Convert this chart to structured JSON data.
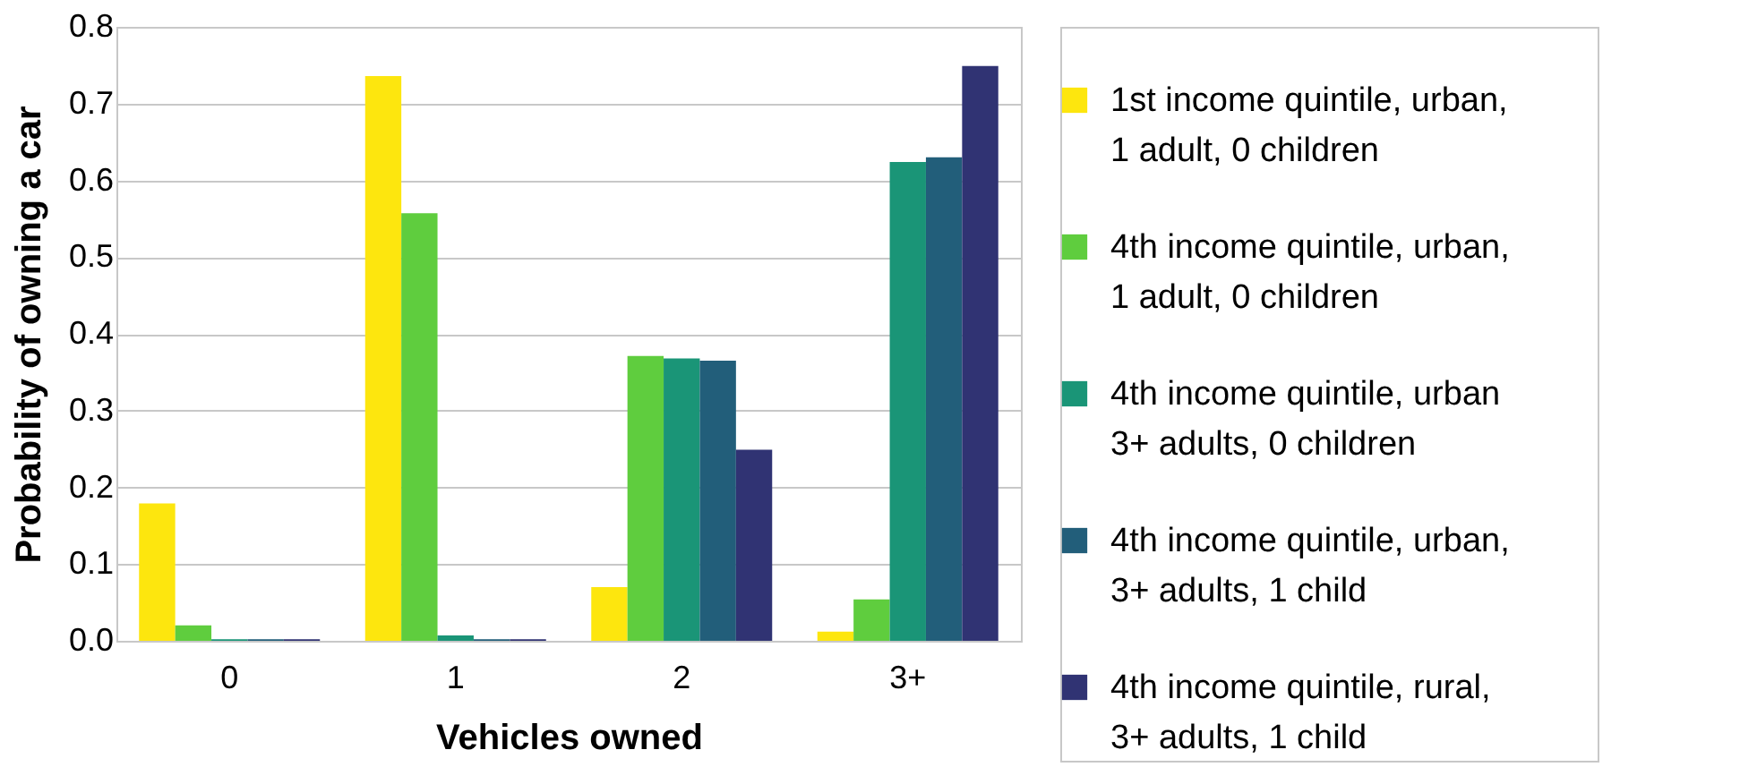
{
  "chart_data": {
    "type": "bar",
    "xlabel": "Vehicles owned",
    "ylabel": "Probability of owning a car",
    "categories": [
      "0",
      "1",
      "2",
      "3+"
    ],
    "series": [
      {
        "name": "1st income quintile, urban, 1 adult, 0 children",
        "color": "#fde60e",
        "values": [
          0.179,
          0.736,
          0.07,
          0.012
        ]
      },
      {
        "name": "4th income quintile, urban, 1 adult, 0 children",
        "color": "#5fcd3e",
        "values": [
          0.02,
          0.557,
          0.371,
          0.054
        ]
      },
      {
        "name": "4th income quintile, urban 3+ adults, 0 children",
        "color": "#1a9577",
        "values": [
          0.002,
          0.007,
          0.368,
          0.624
        ]
      },
      {
        "name": "4th income quintile, urban, 3+ adults, 1 child",
        "color": "#225e7a",
        "values": [
          0.002,
          0.002,
          0.365,
          0.63
        ]
      },
      {
        "name": "4th income quintile, rural, 3+ adults, 1 child",
        "color": "#303373",
        "values": [
          0.002,
          0.002,
          0.249,
          0.749
        ]
      }
    ],
    "ylim": [
      0,
      0.8
    ],
    "yticks": [
      {
        "value": 0,
        "label": "0.0"
      },
      0.1,
      0.2,
      0.3,
      0.4,
      0.5,
      0.6,
      0.7,
      0.8
    ],
    "grid": "y",
    "legend": "right"
  }
}
